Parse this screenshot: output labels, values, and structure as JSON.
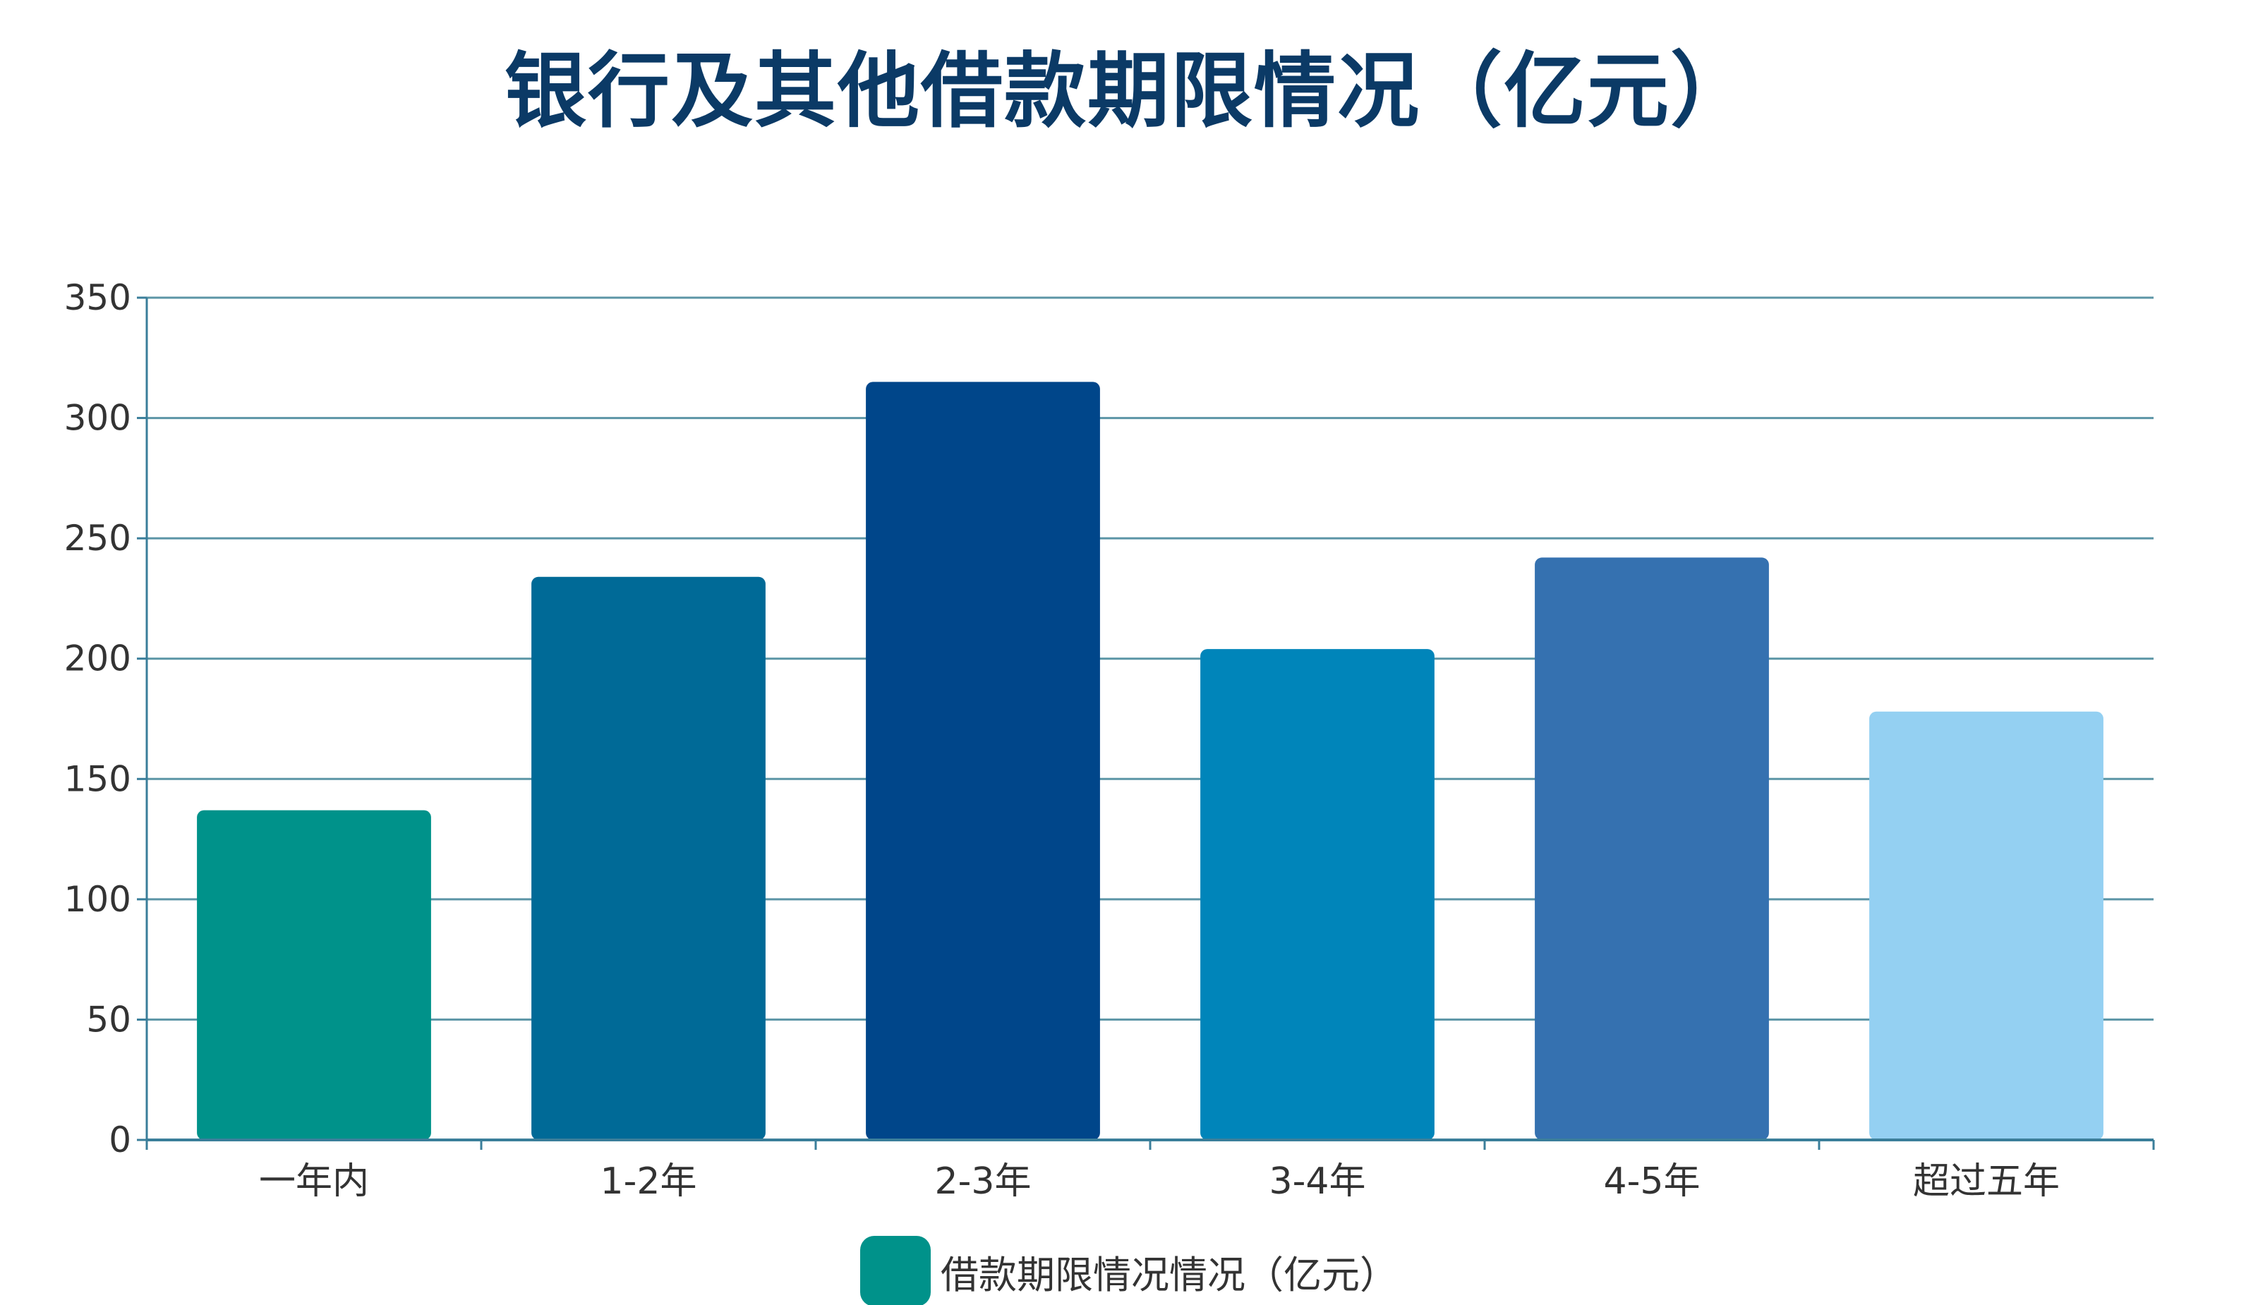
{
  "chart_data": {
    "type": "bar",
    "title": "银行及其他借款期限情况（亿元）",
    "categories": [
      "一年内",
      "1-2年",
      "2-3年",
      "3-4年",
      "4-5年",
      "超过五年"
    ],
    "series": [
      {
        "name": "借款期限情况情况（亿元）",
        "values": [
          137,
          234,
          315,
          204,
          242,
          178
        ]
      }
    ],
    "bar_colors": [
      "#00928A",
      "#006A97",
      "#00468A",
      "#0085BA",
      "#3571B0",
      "#94D0F2"
    ],
    "ylim": [
      0,
      350
    ],
    "yticks": [
      0,
      50,
      100,
      150,
      200,
      250,
      300,
      350
    ],
    "xlabel": "",
    "ylabel": "",
    "grid": "horizontal",
    "legend": "bottom-center"
  },
  "colors": {
    "title": "#0B3A66",
    "axis": "#3A7E9A",
    "grid": "#5B95A6",
    "text": "#333333",
    "legend_swatch": "#00928A"
  }
}
